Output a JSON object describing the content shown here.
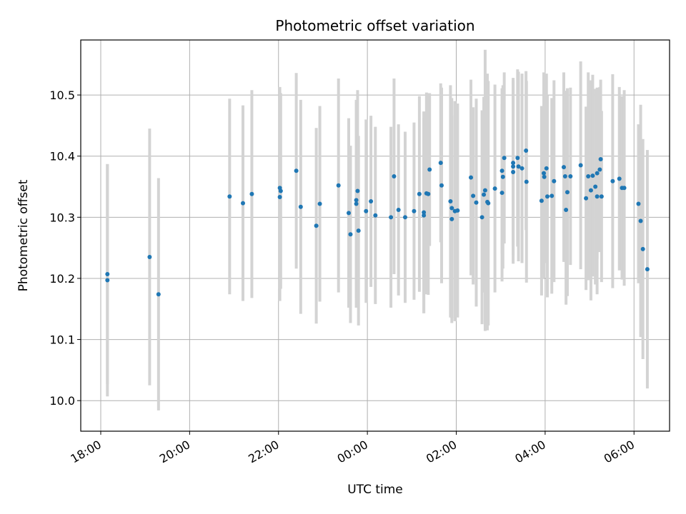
{
  "chart_data": {
    "type": "scatter",
    "title": "Photometric offset variation",
    "xlabel": "UTC time",
    "ylabel": "Photometric offset",
    "x_unit": "hours (UTC, continuing past midnight as 24+)",
    "xlim": [
      17.55,
      30.8
    ],
    "ylim": [
      9.95,
      10.59
    ],
    "x_tick_values": [
      18,
      20,
      22,
      24,
      26,
      28,
      30
    ],
    "x_tick_labels": [
      "18:00",
      "20:00",
      "22:00",
      "00:00",
      "02:00",
      "04:00",
      "06:00"
    ],
    "y_ticks": [
      10.0,
      10.1,
      10.2,
      10.3,
      10.4,
      10.5
    ],
    "y_tick_labels": [
      "10.0",
      "10.1",
      "10.2",
      "10.3",
      "10.4",
      "10.5"
    ],
    "grid": true,
    "colors": {
      "point": "#1f77b4",
      "errorbar": "#d3d3d3",
      "grid": "#b0b0b0"
    },
    "series": [
      {
        "x": [
          18.15,
          18.15,
          19.1,
          19.3,
          20.9,
          21.2,
          21.4,
          22.03,
          22.03,
          22.05,
          22.4,
          22.5,
          22.85,
          22.93,
          23.35,
          23.58,
          23.62,
          23.75,
          23.75,
          23.78,
          23.8,
          23.97,
          24.08,
          24.18,
          24.53,
          24.6,
          24.7,
          24.85,
          25.05,
          25.17,
          25.27,
          25.27,
          25.33,
          25.37,
          25.4,
          25.65,
          25.67,
          25.87,
          25.9,
          25.9,
          25.97,
          26.03,
          26.38,
          26.33,
          26.45,
          26.58,
          26.62,
          26.65,
          26.7,
          26.72,
          26.87,
          27.03,
          27.03,
          27.05,
          27.08,
          27.28,
          27.28,
          27.28,
          27.38,
          27.4,
          27.48,
          27.57,
          27.58,
          27.92,
          27.97,
          27.98,
          28.03,
          28.05,
          28.15,
          28.2,
          28.42,
          28.45,
          28.47,
          28.5,
          28.57,
          28.8,
          28.92,
          28.97,
          29.03,
          29.07,
          29.13,
          29.17,
          29.17,
          29.23,
          29.25,
          29.27,
          29.52,
          29.67,
          29.73,
          29.78,
          30.1,
          30.15,
          30.2,
          30.3
        ],
        "y": [
          10.207,
          10.197,
          10.235,
          10.174,
          10.334,
          10.323,
          10.338,
          10.348,
          10.333,
          10.343,
          10.376,
          10.317,
          10.286,
          10.322,
          10.352,
          10.307,
          10.272,
          10.328,
          10.322,
          10.343,
          10.278,
          10.31,
          10.326,
          10.303,
          10.3,
          10.367,
          10.312,
          10.3,
          10.31,
          10.338,
          10.308,
          10.303,
          10.339,
          10.338,
          10.378,
          10.389,
          10.352,
          10.326,
          10.297,
          10.315,
          10.31,
          10.311,
          10.335,
          10.365,
          10.324,
          10.3,
          10.337,
          10.344,
          10.325,
          10.323,
          10.347,
          10.376,
          10.34,
          10.366,
          10.397,
          10.389,
          10.383,
          10.374,
          10.397,
          10.383,
          10.38,
          10.409,
          10.358,
          10.327,
          10.372,
          10.366,
          10.38,
          10.334,
          10.335,
          10.359,
          10.382,
          10.367,
          10.312,
          10.341,
          10.367,
          10.385,
          10.331,
          10.367,
          10.344,
          10.368,
          10.35,
          10.334,
          10.372,
          10.378,
          10.395,
          10.334,
          10.359,
          10.363,
          10.348,
          10.348,
          10.322,
          10.294,
          10.248,
          10.215
        ],
        "yerr": [
          0.18,
          0.19,
          0.21,
          0.19,
          0.16,
          0.16,
          0.17,
          0.165,
          0.17,
          0.16,
          0.16,
          0.175,
          0.16,
          0.16,
          0.175,
          0.155,
          0.145,
          0.16,
          0.17,
          0.165,
          0.155,
          0.15,
          0.14,
          0.145,
          0.148,
          0.16,
          0.14,
          0.14,
          0.145,
          0.16,
          0.165,
          0.16,
          0.165,
          0.165,
          0.125,
          0.13,
          0.16,
          0.19,
          0.17,
          0.18,
          0.18,
          0.175,
          0.145,
          0.16,
          0.17,
          0.175,
          0.16,
          0.23,
          0.21,
          0.2,
          0.17,
          0.135,
          0.145,
          0.15,
          0.14,
          0.135,
          0.145,
          0.15,
          0.145,
          0.155,
          0.155,
          0.13,
          0.165,
          0.155,
          0.165,
          0.165,
          0.155,
          0.165,
          0.16,
          0.165,
          0.155,
          0.14,
          0.155,
          0.17,
          0.145,
          0.17,
          0.15,
          0.17,
          0.18,
          0.165,
          0.16,
          0.16,
          0.14,
          0.135,
          0.13,
          0.14,
          0.175,
          0.15,
          0.15,
          0.16,
          0.13,
          0.19,
          0.18,
          0.195
        ]
      }
    ]
  }
}
